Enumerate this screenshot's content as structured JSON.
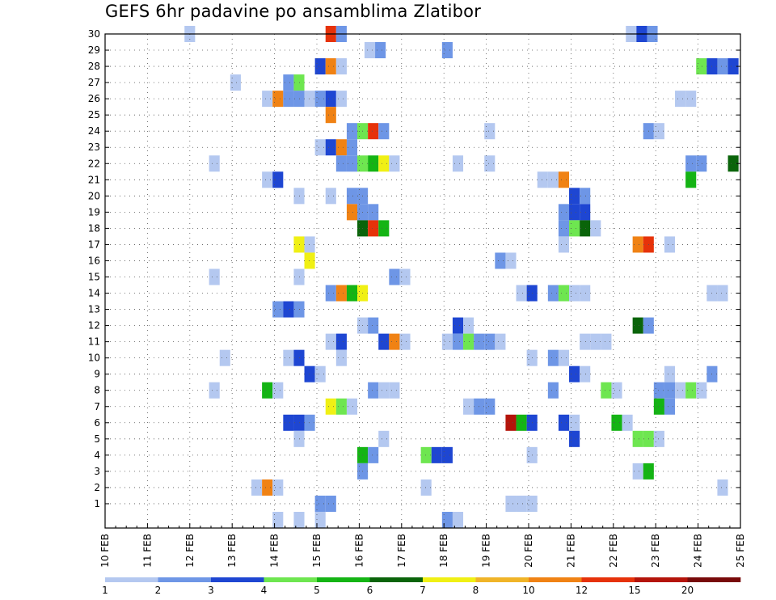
{
  "chart_data": {
    "type": "heatmap",
    "title": "GEFS 6hr padavine po ansamblima Zlatibor",
    "x_tick_labels": [
      "10 FEB",
      "11 FEB",
      "12 FEB",
      "13 FEB",
      "14 FEB",
      "15 FEB",
      "16 FEB",
      "17 FEB",
      "18 FEB",
      "19 FEB",
      "20 FEB",
      "21 FEB",
      "22 FEB",
      "23 FEB",
      "24 FEB",
      "25 FEB"
    ],
    "x_range_days": [
      10,
      25
    ],
    "y_range": [
      0,
      30
    ],
    "y_tick_labels": [
      "1",
      "2",
      "3",
      "4",
      "5",
      "6",
      "7",
      "8",
      "9",
      "10",
      "11",
      "12",
      "13",
      "14",
      "15",
      "16",
      "17",
      "18",
      "19",
      "20",
      "21",
      "22",
      "23",
      "24",
      "25",
      "26",
      "27",
      "28",
      "29",
      "30"
    ],
    "grid": true,
    "colorbar": {
      "placement": "bottom",
      "labels": [
        "1",
        "2",
        "3",
        "4",
        "5",
        "6",
        "7",
        "8",
        "10",
        "12",
        "15",
        "20"
      ],
      "colors": [
        "#b4c8f0",
        "#6e96e6",
        "#1e46d2",
        "#6ee650",
        "#14b414",
        "#0a640a",
        "#f0f014",
        "#f0b428",
        "#f08214",
        "#e6320a",
        "#b4140a",
        "#780a0a"
      ]
    },
    "cells": [
      [
        12.0,
        30,
        0
      ],
      [
        15.33,
        30,
        9
      ],
      [
        15.58,
        30,
        1
      ],
      [
        22.42,
        30,
        0
      ],
      [
        22.67,
        30,
        2
      ],
      [
        22.92,
        30,
        1
      ],
      [
        16.25,
        29,
        0
      ],
      [
        16.5,
        29,
        1
      ],
      [
        18.08,
        29,
        1
      ],
      [
        15.08,
        28,
        2
      ],
      [
        15.33,
        28,
        8
      ],
      [
        15.58,
        28,
        0
      ],
      [
        24.08,
        28,
        3
      ],
      [
        24.33,
        28,
        2
      ],
      [
        24.58,
        28,
        1
      ],
      [
        24.83,
        28,
        2
      ],
      [
        13.08,
        27,
        0
      ],
      [
        14.33,
        27,
        1
      ],
      [
        14.58,
        27,
        3
      ],
      [
        13.83,
        26,
        0
      ],
      [
        14.08,
        26,
        8
      ],
      [
        14.33,
        26,
        1
      ],
      [
        14.58,
        26,
        1
      ],
      [
        14.83,
        26,
        0
      ],
      [
        15.08,
        26,
        1
      ],
      [
        15.33,
        26,
        2
      ],
      [
        15.58,
        26,
        0
      ],
      [
        23.58,
        26,
        0
      ],
      [
        23.83,
        26,
        0
      ],
      [
        15.33,
        25,
        8
      ],
      [
        15.83,
        24,
        1
      ],
      [
        16.08,
        24,
        3
      ],
      [
        16.33,
        24,
        9
      ],
      [
        16.58,
        24,
        1
      ],
      [
        19.08,
        24,
        0
      ],
      [
        22.83,
        24,
        1
      ],
      [
        23.08,
        24,
        0
      ],
      [
        15.08,
        23,
        0
      ],
      [
        15.33,
        23,
        2
      ],
      [
        15.58,
        23,
        8
      ],
      [
        15.83,
        23,
        1
      ],
      [
        12.58,
        22,
        0
      ],
      [
        15.58,
        22,
        1
      ],
      [
        15.83,
        22,
        1
      ],
      [
        16.08,
        22,
        3
      ],
      [
        16.33,
        22,
        4
      ],
      [
        16.58,
        22,
        6
      ],
      [
        16.83,
        22,
        0
      ],
      [
        18.33,
        22,
        0
      ],
      [
        19.08,
        22,
        0
      ],
      [
        23.83,
        22,
        1
      ],
      [
        24.08,
        22,
        1
      ],
      [
        24.83,
        22,
        5
      ],
      [
        13.83,
        21,
        0
      ],
      [
        14.08,
        21,
        2
      ],
      [
        20.33,
        21,
        0
      ],
      [
        20.58,
        21,
        0
      ],
      [
        20.83,
        21,
        8
      ],
      [
        23.83,
        21,
        4
      ],
      [
        14.58,
        20,
        0
      ],
      [
        15.33,
        20,
        0
      ],
      [
        15.83,
        20,
        1
      ],
      [
        16.08,
        20,
        1
      ],
      [
        21.08,
        20,
        2
      ],
      [
        21.33,
        20,
        1
      ],
      [
        15.83,
        19,
        8
      ],
      [
        16.08,
        19,
        1
      ],
      [
        16.33,
        19,
        1
      ],
      [
        20.83,
        19,
        1
      ],
      [
        21.08,
        19,
        2
      ],
      [
        21.33,
        19,
        2
      ],
      [
        16.08,
        18,
        5
      ],
      [
        16.33,
        18,
        9
      ],
      [
        16.58,
        18,
        4
      ],
      [
        20.83,
        18,
        1
      ],
      [
        21.08,
        18,
        3
      ],
      [
        21.33,
        18,
        5
      ],
      [
        21.58,
        18,
        0
      ],
      [
        14.58,
        17,
        6
      ],
      [
        14.83,
        17,
        0
      ],
      [
        20.83,
        17,
        0
      ],
      [
        22.58,
        17,
        8
      ],
      [
        22.83,
        17,
        9
      ],
      [
        23.33,
        17,
        0
      ],
      [
        14.83,
        16,
        6
      ],
      [
        19.33,
        16,
        1
      ],
      [
        19.58,
        16,
        0
      ],
      [
        12.58,
        15,
        0
      ],
      [
        14.58,
        15,
        0
      ],
      [
        16.83,
        15,
        1
      ],
      [
        17.08,
        15,
        0
      ],
      [
        15.33,
        14,
        1
      ],
      [
        15.58,
        14,
        8
      ],
      [
        15.83,
        14,
        4
      ],
      [
        16.08,
        14,
        6
      ],
      [
        19.83,
        14,
        0
      ],
      [
        20.08,
        14,
        2
      ],
      [
        20.58,
        14,
        1
      ],
      [
        20.83,
        14,
        3
      ],
      [
        21.08,
        14,
        0
      ],
      [
        21.33,
        14,
        0
      ],
      [
        24.33,
        14,
        0
      ],
      [
        24.58,
        14,
        0
      ],
      [
        14.08,
        13,
        1
      ],
      [
        14.33,
        13,
        2
      ],
      [
        14.58,
        13,
        1
      ],
      [
        16.08,
        12,
        0
      ],
      [
        16.33,
        12,
        1
      ],
      [
        18.33,
        12,
        2
      ],
      [
        18.58,
        12,
        0
      ],
      [
        22.58,
        12,
        5
      ],
      [
        22.83,
        12,
        1
      ],
      [
        15.33,
        11,
        0
      ],
      [
        15.58,
        11,
        2
      ],
      [
        16.58,
        11,
        2
      ],
      [
        16.83,
        11,
        8
      ],
      [
        17.08,
        11,
        0
      ],
      [
        18.08,
        11,
        0
      ],
      [
        18.33,
        11,
        1
      ],
      [
        18.58,
        11,
        3
      ],
      [
        18.83,
        11,
        1
      ],
      [
        19.08,
        11,
        1
      ],
      [
        19.33,
        11,
        0
      ],
      [
        21.33,
        11,
        0
      ],
      [
        21.58,
        11,
        0
      ],
      [
        21.83,
        11,
        0
      ],
      [
        12.83,
        10,
        0
      ],
      [
        14.33,
        10,
        0
      ],
      [
        14.58,
        10,
        2
      ],
      [
        15.58,
        10,
        0
      ],
      [
        20.08,
        10,
        0
      ],
      [
        20.58,
        10,
        1
      ],
      [
        20.83,
        10,
        0
      ],
      [
        14.83,
        9,
        2
      ],
      [
        15.08,
        9,
        0
      ],
      [
        21.08,
        9,
        2
      ],
      [
        21.33,
        9,
        0
      ],
      [
        23.33,
        9,
        0
      ],
      [
        24.33,
        9,
        1
      ],
      [
        12.58,
        8,
        0
      ],
      [
        13.83,
        8,
        4
      ],
      [
        14.08,
        8,
        0
      ],
      [
        16.33,
        8,
        1
      ],
      [
        16.58,
        8,
        0
      ],
      [
        16.83,
        8,
        0
      ],
      [
        20.58,
        8,
        1
      ],
      [
        21.83,
        8,
        3
      ],
      [
        22.08,
        8,
        0
      ],
      [
        23.08,
        8,
        1
      ],
      [
        23.33,
        8,
        1
      ],
      [
        23.58,
        8,
        0
      ],
      [
        23.83,
        8,
        3
      ],
      [
        24.08,
        8,
        0
      ],
      [
        15.33,
        7,
        6
      ],
      [
        15.58,
        7,
        3
      ],
      [
        15.83,
        7,
        0
      ],
      [
        18.58,
        7,
        0
      ],
      [
        18.83,
        7,
        1
      ],
      [
        19.08,
        7,
        1
      ],
      [
        23.08,
        7,
        4
      ],
      [
        23.33,
        7,
        1
      ],
      [
        14.33,
        6,
        2
      ],
      [
        14.58,
        6,
        2
      ],
      [
        14.83,
        6,
        1
      ],
      [
        19.58,
        6,
        10
      ],
      [
        19.83,
        6,
        4
      ],
      [
        20.08,
        6,
        2
      ],
      [
        20.83,
        6,
        2
      ],
      [
        21.08,
        6,
        0
      ],
      [
        22.08,
        6,
        4
      ],
      [
        22.33,
        6,
        0
      ],
      [
        14.58,
        5,
        0
      ],
      [
        16.58,
        5,
        0
      ],
      [
        21.08,
        5,
        2
      ],
      [
        22.58,
        5,
        3
      ],
      [
        22.83,
        5,
        3
      ],
      [
        23.08,
        5,
        0
      ],
      [
        16.08,
        4,
        4
      ],
      [
        16.33,
        4,
        1
      ],
      [
        17.58,
        4,
        3
      ],
      [
        17.83,
        4,
        2
      ],
      [
        18.08,
        4,
        2
      ],
      [
        20.08,
        4,
        0
      ],
      [
        16.08,
        3,
        1
      ],
      [
        22.58,
        3,
        0
      ],
      [
        22.83,
        3,
        4
      ],
      [
        13.58,
        2,
        0
      ],
      [
        13.83,
        2,
        8
      ],
      [
        14.08,
        2,
        0
      ],
      [
        17.58,
        2,
        0
      ],
      [
        24.58,
        2,
        0
      ],
      [
        15.08,
        1,
        1
      ],
      [
        15.33,
        1,
        1
      ],
      [
        19.58,
        1,
        0
      ],
      [
        19.83,
        1,
        0
      ],
      [
        20.08,
        1,
        0
      ],
      [
        14.08,
        0,
        0
      ],
      [
        14.58,
        0,
        0
      ],
      [
        15.08,
        0,
        0
      ],
      [
        18.08,
        0,
        1
      ],
      [
        18.33,
        0,
        0
      ]
    ]
  }
}
